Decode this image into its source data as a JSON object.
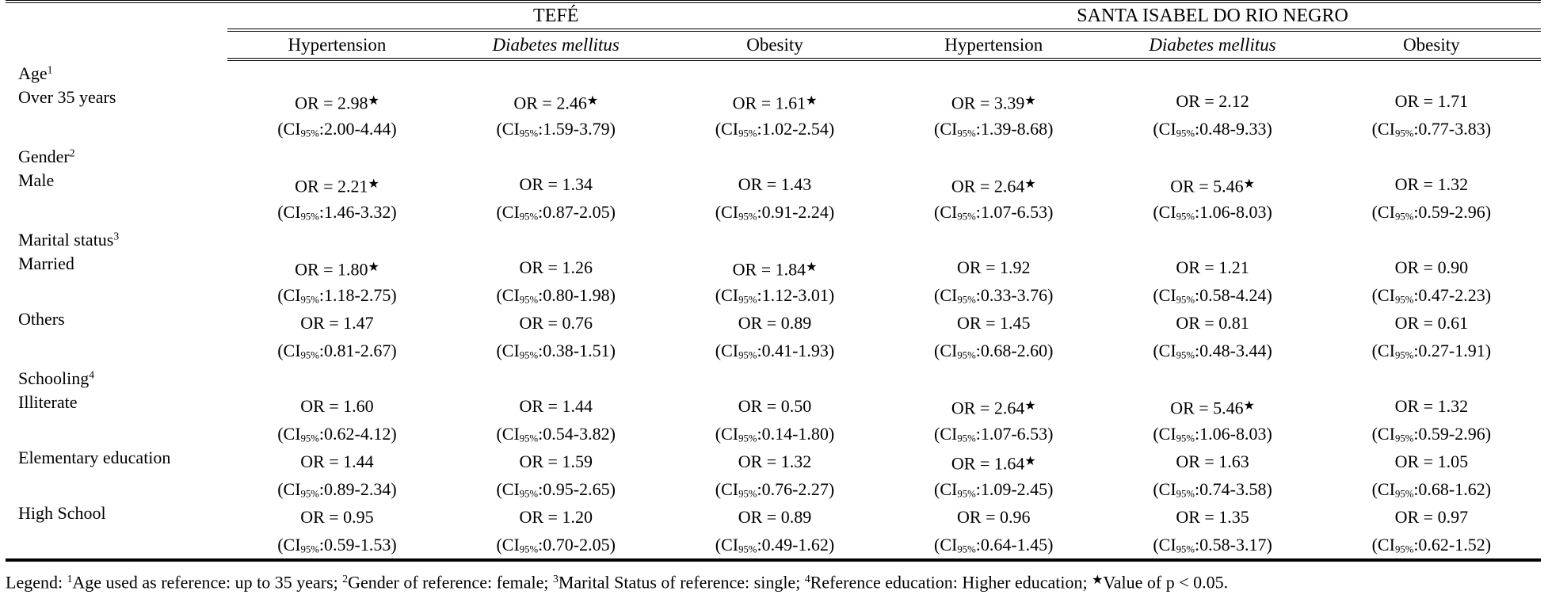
{
  "colors": {
    "text": "#000000",
    "background": "#ffffff",
    "rule": "#000000"
  },
  "table": {
    "col_groups": [
      {
        "label": "TEFÉ",
        "span": 3
      },
      {
        "label": "SANTA ISABEL DO RIO NEGRO",
        "span": 3
      }
    ],
    "col_headers": [
      {
        "label": "Hypertension",
        "italic": false
      },
      {
        "label": "Diabetes mellitus",
        "italic": true
      },
      {
        "label": "Obesity",
        "italic": false
      },
      {
        "label": "Hypertension",
        "italic": false
      },
      {
        "label": "Diabetes mellitus",
        "italic": true
      },
      {
        "label": "Obesity",
        "italic": false
      }
    ],
    "or_prefix": "OR = ",
    "star": "★",
    "ci_label": "CI",
    "ci_sub": "95%",
    "rows": [
      {
        "type": "section",
        "label": "Age",
        "sup": "1"
      },
      {
        "type": "data",
        "label": "Over 35 years",
        "cells": [
          {
            "or": "2.98",
            "sig": true,
            "ci": "2.00-4.44"
          },
          {
            "or": "2.46",
            "sig": true,
            "ci": "1.59-3.79"
          },
          {
            "or": "1.61",
            "sig": true,
            "ci": "1.02-2.54"
          },
          {
            "or": "3.39",
            "sig": true,
            "ci": "1.39-8.68"
          },
          {
            "or": "2.12",
            "sig": false,
            "ci": "0.48-9.33"
          },
          {
            "or": "1.71",
            "sig": false,
            "ci": "0.77-3.83"
          }
        ]
      },
      {
        "type": "section",
        "label": "Gender",
        "sup": "2"
      },
      {
        "type": "data",
        "label": "Male",
        "cells": [
          {
            "or": "2.21",
            "sig": true,
            "ci": "1.46-3.32"
          },
          {
            "or": "1.34",
            "sig": false,
            "ci": "0.87-2.05"
          },
          {
            "or": "1.43",
            "sig": false,
            "ci": "0.91-2.24"
          },
          {
            "or": "2.64",
            "sig": true,
            "ci": "1.07-6.53"
          },
          {
            "or": "5.46",
            "sig": true,
            "ci": "1.06-8.03"
          },
          {
            "or": "1.32",
            "sig": false,
            "ci": "0.59-2.96"
          }
        ]
      },
      {
        "type": "section",
        "label": "Marital status",
        "sup": "3"
      },
      {
        "type": "data",
        "label": "Married",
        "cells": [
          {
            "or": "1.80",
            "sig": true,
            "ci": "1.18-2.75"
          },
          {
            "or": "1.26",
            "sig": false,
            "ci": "0.80-1.98"
          },
          {
            "or": "1.84",
            "sig": true,
            "ci": "1.12-3.01"
          },
          {
            "or": "1.92",
            "sig": false,
            "ci": "0.33-3.76"
          },
          {
            "or": "1.21",
            "sig": false,
            "ci": "0.58-4.24"
          },
          {
            "or": "0.90",
            "sig": false,
            "ci": "0.47-2.23"
          }
        ]
      },
      {
        "type": "data",
        "label": "Others",
        "cells": [
          {
            "or": "1.47",
            "sig": false,
            "ci": "0.81-2.67"
          },
          {
            "or": "0.76",
            "sig": false,
            "ci": "0.38-1.51"
          },
          {
            "or": "0.89",
            "sig": false,
            "ci": "0.41-1.93"
          },
          {
            "or": "1.45",
            "sig": false,
            "ci": "0.68-2.60"
          },
          {
            "or": "0.81",
            "sig": false,
            "ci": "0.48-3.44"
          },
          {
            "or": "0.61",
            "sig": false,
            "ci": "0.27-1.91"
          }
        ]
      },
      {
        "type": "section",
        "label": "Schooling",
        "sup": "4"
      },
      {
        "type": "data",
        "label": "Illiterate",
        "cells": [
          {
            "or": "1.60",
            "sig": false,
            "ci": "0.62-4.12"
          },
          {
            "or": "1.44",
            "sig": false,
            "ci": "0.54-3.82"
          },
          {
            "or": "0.50",
            "sig": false,
            "ci": "0.14-1.80"
          },
          {
            "or": "2.64",
            "sig": true,
            "ci": "1.07-6.53"
          },
          {
            "or": "5.46",
            "sig": true,
            "ci": "1.06-8.03"
          },
          {
            "or": "1.32",
            "sig": false,
            "ci": "0.59-2.96"
          }
        ]
      },
      {
        "type": "data",
        "label": "Elementary education",
        "cells": [
          {
            "or": "1.44",
            "sig": false,
            "ci": "0.89-2.34"
          },
          {
            "or": "1.59",
            "sig": false,
            "ci": "0.95-2.65"
          },
          {
            "or": "1.32",
            "sig": false,
            "ci": "0.76-2.27"
          },
          {
            "or": "1.64",
            "sig": true,
            "ci": "1.09-2.45"
          },
          {
            "or": "1.63",
            "sig": false,
            "ci": "0.74-3.58"
          },
          {
            "or": "1.05",
            "sig": false,
            "ci": "0.68-1.62"
          }
        ]
      },
      {
        "type": "data",
        "label": "High School",
        "cells": [
          {
            "or": "0.95",
            "sig": false,
            "ci": "0.59-1.53"
          },
          {
            "or": "1.20",
            "sig": false,
            "ci": "0.70-2.05"
          },
          {
            "or": "0.89",
            "sig": false,
            "ci": "0.49-1.62"
          },
          {
            "or": "0.96",
            "sig": false,
            "ci": "0.64-1.45"
          },
          {
            "or": "1.35",
            "sig": false,
            "ci": "0.58-3.17"
          },
          {
            "or": "0.97",
            "sig": false,
            "ci": "0.62-1.52"
          }
        ]
      }
    ]
  },
  "legend": {
    "prefix": "Legend: ",
    "items": [
      {
        "sup": "1",
        "text": "Age used as reference: up to 35 years; "
      },
      {
        "sup": "2",
        "text": "Gender of reference: female; "
      },
      {
        "sup": "3",
        "text": "Marital Status of reference: single; "
      },
      {
        "sup": "4",
        "text": "Reference education: Higher education; "
      },
      {
        "star": "★",
        "text": "Value of p < 0.05."
      }
    ]
  }
}
